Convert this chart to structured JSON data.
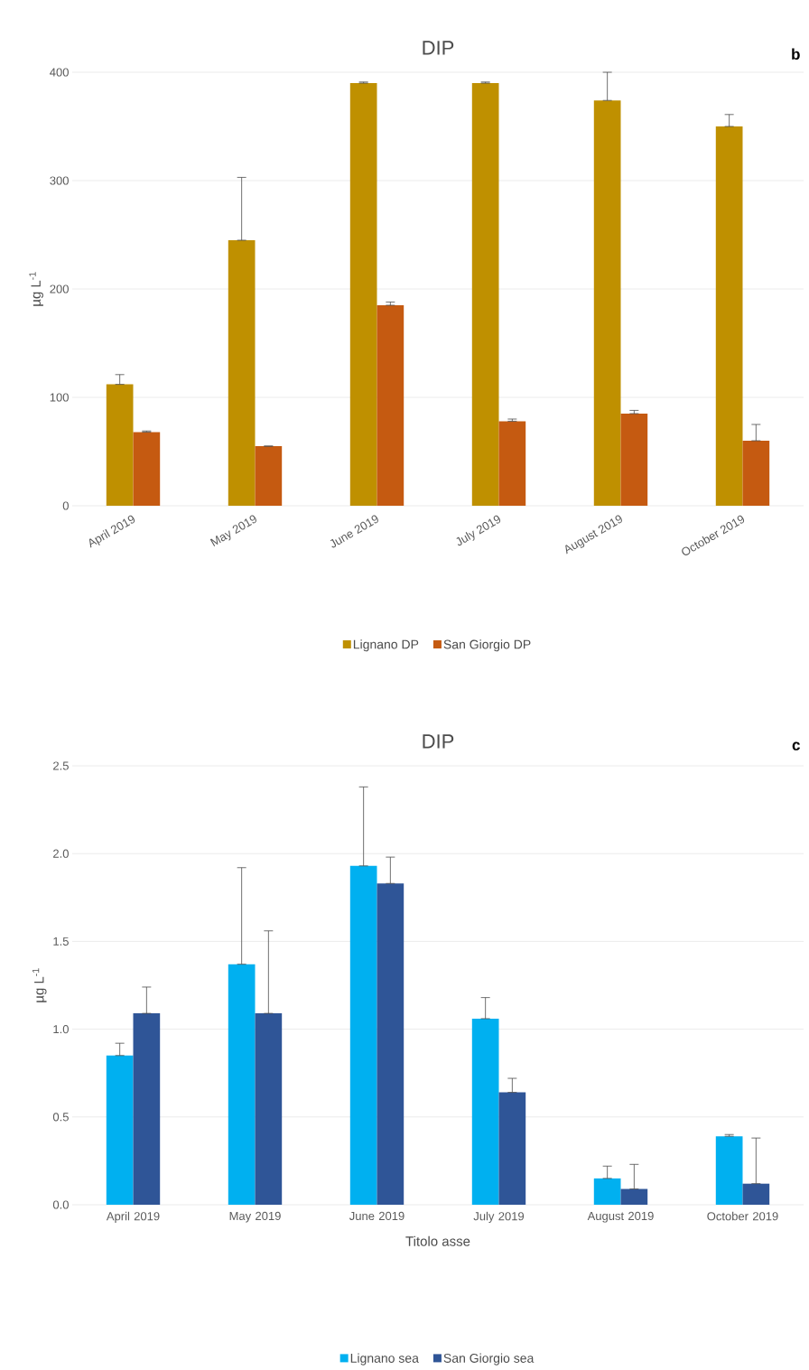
{
  "chart_data": [
    {
      "type": "bar",
      "title": "DIP",
      "annotations": [
        "b"
      ],
      "ylabel": "µg L$^{-1}$",
      "categories": [
        "April 2019",
        "May 2019",
        "June 2019",
        "July 2019",
        "August 2019",
        "October 2019"
      ],
      "series": [
        {
          "name": "Lignano DP",
          "color": "#bf9000",
          "values": [
            112,
            245,
            390,
            390,
            374,
            350
          ],
          "errors": [
            [
              112,
              121
            ],
            [
              245,
              303
            ],
            [
              390,
              391
            ],
            [
              390,
              391
            ],
            [
              374,
              400
            ],
            [
              350,
              361
            ]
          ]
        },
        {
          "name": "San Giorgio DP",
          "color": "#c55a11",
          "values": [
            68,
            55,
            185,
            78,
            85,
            60
          ],
          "errors": [
            [
              68,
              69
            ],
            [
              55,
              55
            ],
            [
              185,
              188
            ],
            [
              78,
              80
            ],
            [
              85,
              88
            ],
            [
              60,
              75
            ]
          ]
        }
      ],
      "ylim": [
        0,
        400
      ],
      "yticks": [
        0,
        100,
        200,
        300,
        400
      ],
      "grid": "y",
      "legend": "bottom"
    },
    {
      "type": "bar",
      "title": "DIP",
      "annotations": [
        "c"
      ],
      "ylabel": "µg L$^{-1}$",
      "xlabel": "Titolo asse",
      "categories": [
        "April 2019",
        "May 2019",
        "June 2019",
        "July 2019",
        "August 2019",
        "October 2019"
      ],
      "series": [
        {
          "name": "Lignano sea",
          "color": "#00b0f0",
          "values": [
            0.85,
            1.37,
            1.93,
            1.06,
            0.15,
            0.39
          ],
          "errors": [
            [
              0.85,
              0.92
            ],
            [
              1.37,
              1.92
            ],
            [
              1.93,
              2.38
            ],
            [
              1.06,
              1.18
            ],
            [
              0.15,
              0.22
            ],
            [
              0.39,
              0.4
            ]
          ]
        },
        {
          "name": "San Giorgio sea",
          "color": "#2f5597",
          "values": [
            1.09,
            1.09,
            1.83,
            0.64,
            0.09,
            0.12
          ],
          "errors": [
            [
              1.09,
              1.24
            ],
            [
              1.09,
              1.56
            ],
            [
              1.83,
              1.98
            ],
            [
              0.64,
              0.72
            ],
            [
              0.09,
              0.23
            ],
            [
              0.12,
              0.38
            ]
          ]
        }
      ],
      "ylim": [
        0,
        2.5
      ],
      "yticks": [
        {
          "value": 0,
          "label": "0.0"
        },
        {
          "value": 0.5,
          "label": "0.5"
        },
        {
          "value": 1,
          "label": "1.0"
        },
        {
          "value": 1.5,
          "label": "1.5"
        },
        {
          "value": 2,
          "label": "2.0"
        },
        {
          "value": 2.5,
          "label": "2.5"
        }
      ],
      "grid": "y",
      "legend": "bottom"
    }
  ]
}
